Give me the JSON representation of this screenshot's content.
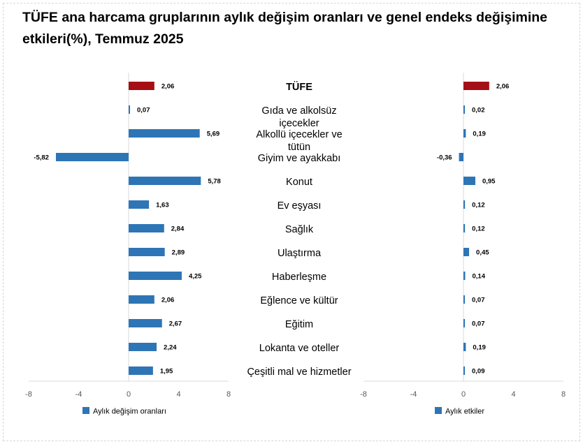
{
  "title": "TÜFE ana harcama gruplarının aylık değişim oranları ve genel endeks değişimine etkileri(%), Temmuz 2025",
  "colors": {
    "highlight": "#a50f15",
    "bar": "#2e75b6",
    "axis": "#d9d9d9"
  },
  "categories": [
    "TÜFE",
    "Gıda ve alkolsüz içecekler",
    "Alkollü içecekler ve tütün",
    "Giyim ve ayakkabı",
    "Konut",
    "Ev eşyası",
    "Sağlık",
    "Ulaştırma",
    "Haberleşme",
    "Eğlence ve kültür",
    "Eğitim",
    "Lokanta ve oteller",
    "Çeşitli mal ve hizmetler"
  ],
  "category_lines": [
    [
      "TÜFE"
    ],
    [
      "Gıda ve alkolsüz",
      "içecekler"
    ],
    [
      "Alkollü içecekler ve",
      "tütün"
    ],
    [
      "Giyim ve ayakkabı"
    ],
    [
      "Konut"
    ],
    [
      "Ev eşyası"
    ],
    [
      "Sağlık"
    ],
    [
      "Ulaştırma"
    ],
    [
      "Haberleşme"
    ],
    [
      "Eğlence ve kültür"
    ],
    [
      "Eğitim"
    ],
    [
      "Lokanta ve oteller"
    ],
    [
      "Çeşitli mal ve hizmetler"
    ]
  ],
  "chart_data": [
    {
      "type": "bar",
      "orientation": "horizontal",
      "title": "",
      "xlim": [
        -8,
        8
      ],
      "xticks": [
        "-8",
        "-4",
        "0",
        "4",
        "8"
      ],
      "legend": "bottom-left",
      "series": [
        {
          "name": "Aylık değişim oranları",
          "values": [
            2.06,
            0.07,
            5.69,
            -5.82,
            5.78,
            1.63,
            2.84,
            2.89,
            4.25,
            2.06,
            2.67,
            2.24,
            1.95
          ],
          "labels": [
            "2,06",
            "0,07",
            "5,69",
            "-5,82",
            "5,78",
            "1,63",
            "2,84",
            "2,89",
            "4,25",
            "2,06",
            "2,67",
            "2,24",
            "1,95"
          ]
        }
      ]
    },
    {
      "type": "bar",
      "orientation": "horizontal",
      "title": "",
      "xlim": [
        -8,
        8
      ],
      "xticks": [
        "-8",
        "-4",
        "0",
        "4",
        "8"
      ],
      "legend": "bottom-left",
      "series": [
        {
          "name": "Aylık etkiler",
          "values": [
            2.06,
            0.02,
            0.19,
            -0.36,
            0.95,
            0.12,
            0.12,
            0.45,
            0.14,
            0.07,
            0.07,
            0.19,
            0.09
          ],
          "labels": [
            "2,06",
            "0,02",
            "0,19",
            "-0,36",
            "0,95",
            "0,12",
            "0,12",
            "0,45",
            "0,14",
            "0,07",
            "0,07",
            "0,19",
            "0,09"
          ]
        }
      ]
    }
  ]
}
